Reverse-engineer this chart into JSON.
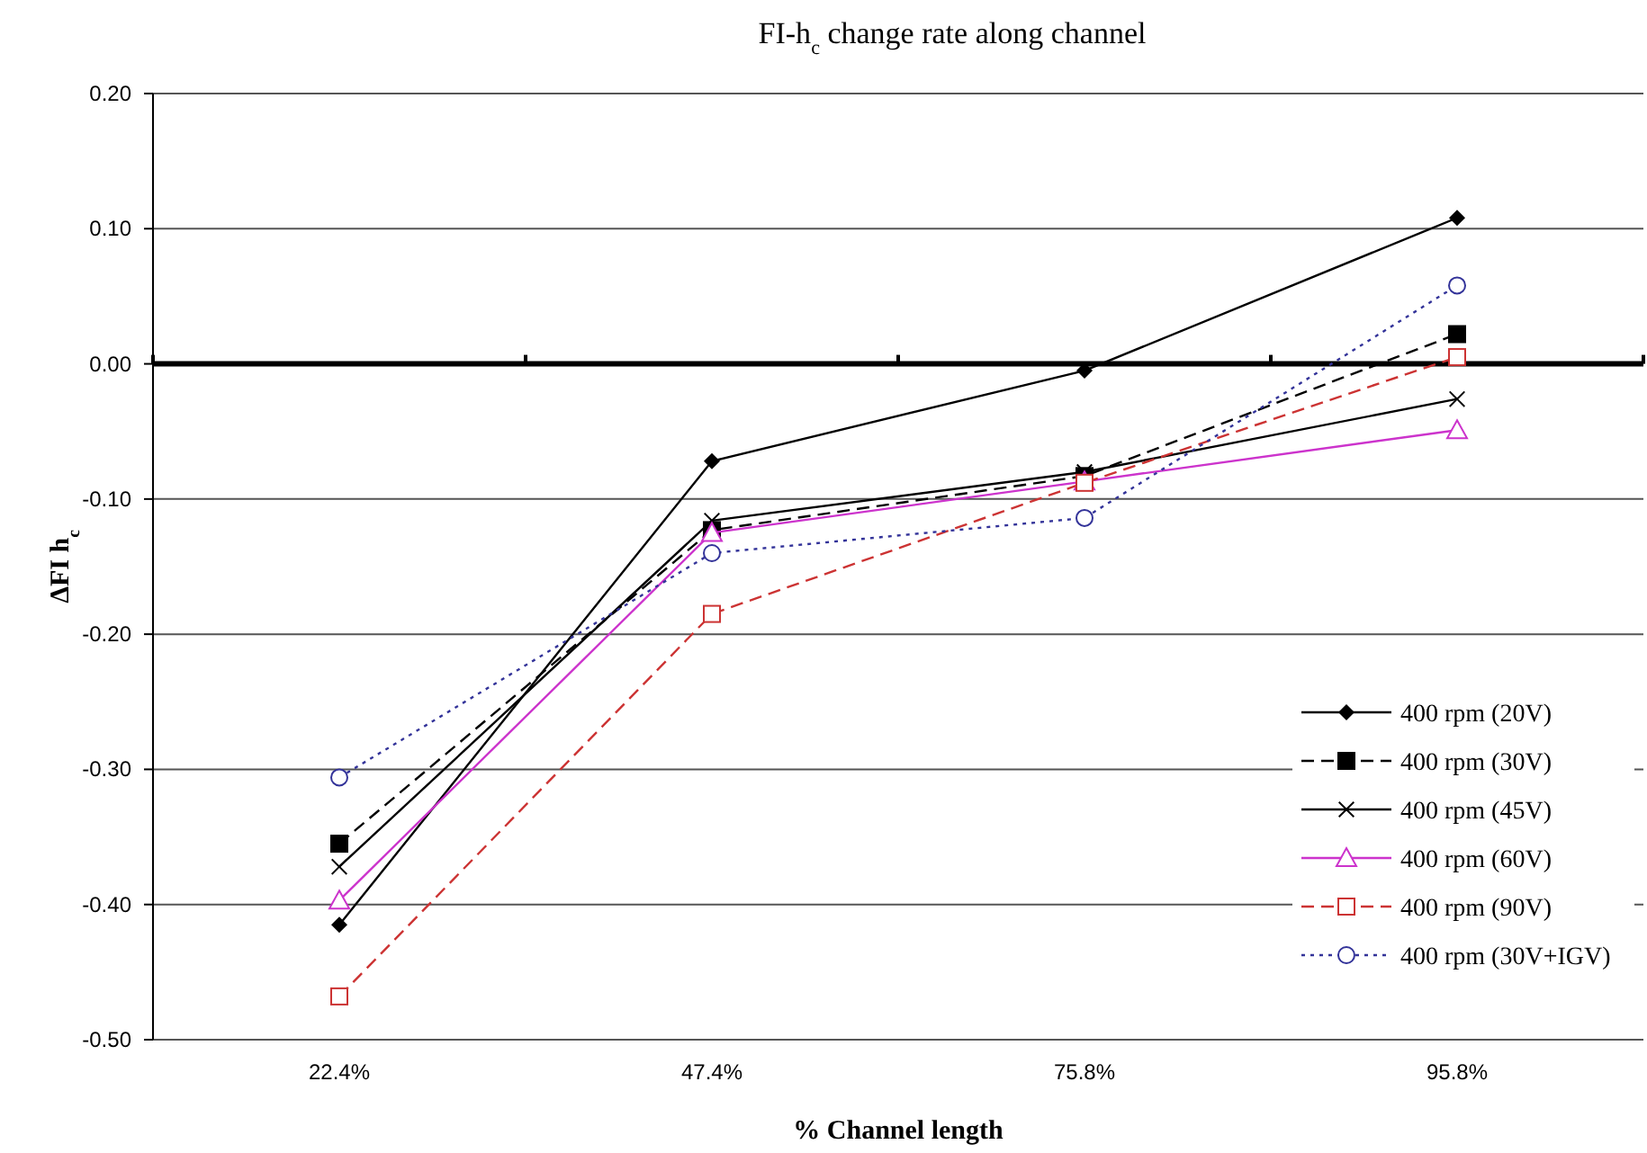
{
  "chart_data": {
    "type": "line",
    "title": "FI-h$_{c}$ change rate along channel",
    "xlabel": "% Channel length",
    "ylabel": "ΔFI h$_{c}$",
    "categories": [
      "22.4%",
      "47.4%",
      "75.8%",
      "95.8%"
    ],
    "ylim": [
      -0.5,
      0.2
    ],
    "yticks": [
      {
        "value": -0.5,
        "label": "-0.50"
      },
      {
        "value": -0.4,
        "label": "-0.40"
      },
      {
        "value": -0.3,
        "label": "-0.30"
      },
      {
        "value": -0.2,
        "label": "-0.20"
      },
      {
        "value": -0.1,
        "label": "-0.10"
      },
      {
        "value": 0,
        "label": "0.00"
      },
      {
        "value": 0.1,
        "label": "0.10"
      },
      {
        "value": 0.2,
        "label": "0.20"
      }
    ],
    "grid": "y",
    "legend": "bottom right",
    "series": [
      {
        "name": "400 rpm (20V)",
        "color": "#000000",
        "marker": "diamond",
        "line_style": "solid",
        "values": [
          -0.415,
          -0.072,
          -0.005,
          0.108
        ]
      },
      {
        "name": "400 rpm (30V)",
        "color": "#000000",
        "marker": "square",
        "line_style": "dashed",
        "values": [
          -0.355,
          -0.123,
          -0.083,
          0.022
        ]
      },
      {
        "name": "400 rpm (45V)",
        "color": "#000000",
        "marker": "cross",
        "line_style": "solid",
        "values": [
          -0.372,
          -0.116,
          -0.08,
          -0.026
        ]
      },
      {
        "name": "400 rpm (60V)",
        "color": "#cc33cc",
        "marker": "triangle",
        "line_style": "solid",
        "values": [
          -0.397,
          -0.125,
          -0.087,
          -0.049
        ]
      },
      {
        "name": "400 rpm (90V)",
        "color": "#cc3333",
        "marker": "square",
        "line_style": "dashed",
        "values": [
          -0.468,
          -0.185,
          -0.088,
          0.005
        ]
      },
      {
        "name": "400 rpm (30V+IGV)",
        "color": "#333399",
        "marker": "circle",
        "line_style": "dotted",
        "values": [
          -0.306,
          -0.14,
          -0.114,
          0.058
        ]
      }
    ]
  }
}
